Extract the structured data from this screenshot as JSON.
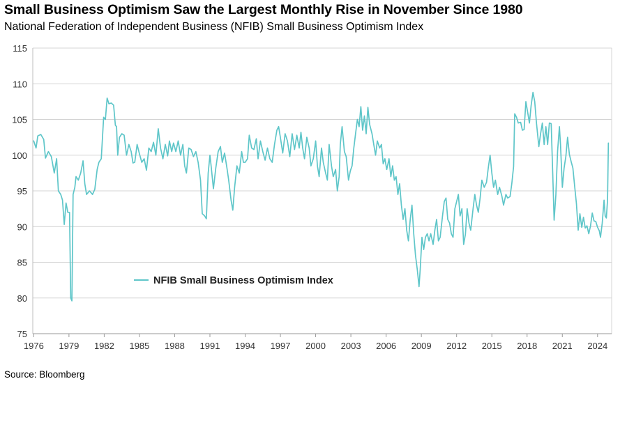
{
  "header": {
    "title": "Small Business Optimism Saw the Largest Monthly Rise in November Since 1980",
    "subtitle": "National Federation of Independent Business (NFIB) Small Business Optimism Index"
  },
  "footer": {
    "source": "Source: Bloomberg"
  },
  "chart_data": {
    "type": "line",
    "title": "Small Business Optimism Saw the Largest Monthly Rise in November Since 1980",
    "subtitle": "National Federation of Independent Business (NFIB) Small Business Optimism Index",
    "xlabel": "",
    "ylabel": "",
    "xlim": [
      1975.92,
      2025.2
    ],
    "ylim": [
      75,
      115
    ],
    "yticks": [
      75,
      80,
      85,
      90,
      95,
      100,
      105,
      110,
      115
    ],
    "xticks": [
      1976,
      1979,
      1982,
      1985,
      1988,
      1991,
      1994,
      1997,
      2000,
      2003,
      2006,
      2009,
      2012,
      2015,
      2018,
      2021,
      2024
    ],
    "grid": "horizontal",
    "legend_position": "lower-left",
    "color": "#5fc6c9",
    "series": [
      {
        "name": "NFIB Small Business Optimism Index",
        "points": [
          [
            1976.0,
            102.0
          ],
          [
            1976.2,
            101.0
          ],
          [
            1976.35,
            102.7
          ],
          [
            1976.6,
            102.9
          ],
          [
            1976.85,
            102.2
          ],
          [
            1977.0,
            99.6
          ],
          [
            1977.25,
            100.5
          ],
          [
            1977.5,
            99.8
          ],
          [
            1977.75,
            97.5
          ],
          [
            1977.95,
            99.5
          ],
          [
            1978.1,
            95.0
          ],
          [
            1978.3,
            94.5
          ],
          [
            1978.45,
            93.7
          ],
          [
            1978.6,
            90.3
          ],
          [
            1978.75,
            93.3
          ],
          [
            1978.9,
            92.0
          ],
          [
            1979.05,
            92.0
          ],
          [
            1979.15,
            80.0
          ],
          [
            1979.25,
            79.6
          ],
          [
            1979.35,
            94.5
          ],
          [
            1979.5,
            95.5
          ],
          [
            1979.6,
            97.0
          ],
          [
            1979.8,
            96.5
          ],
          [
            1980.0,
            97.5
          ],
          [
            1980.2,
            99.2
          ],
          [
            1980.35,
            96.0
          ],
          [
            1980.5,
            94.5
          ],
          [
            1980.75,
            95.0
          ],
          [
            1981.0,
            94.5
          ],
          [
            1981.2,
            95.2
          ],
          [
            1981.4,
            98.0
          ],
          [
            1981.55,
            99.0
          ],
          [
            1981.75,
            99.5
          ],
          [
            1981.95,
            105.3
          ],
          [
            1982.1,
            105.0
          ],
          [
            1982.25,
            108.0
          ],
          [
            1982.4,
            107.2
          ],
          [
            1982.6,
            107.3
          ],
          [
            1982.8,
            107.0
          ],
          [
            1982.95,
            104.2
          ],
          [
            1983.05,
            104.0
          ],
          [
            1983.15,
            100.0
          ],
          [
            1983.3,
            102.5
          ],
          [
            1983.5,
            103.0
          ],
          [
            1983.7,
            102.8
          ],
          [
            1983.9,
            100.0
          ],
          [
            1984.1,
            101.5
          ],
          [
            1984.3,
            100.5
          ],
          [
            1984.45,
            98.9
          ],
          [
            1984.6,
            99.0
          ],
          [
            1984.8,
            101.5
          ],
          [
            1985.0,
            100.2
          ],
          [
            1985.2,
            99.0
          ],
          [
            1985.4,
            99.5
          ],
          [
            1985.6,
            97.9
          ],
          [
            1985.8,
            101.0
          ],
          [
            1986.0,
            100.5
          ],
          [
            1986.2,
            101.8
          ],
          [
            1986.4,
            100.0
          ],
          [
            1986.6,
            103.7
          ],
          [
            1986.8,
            101.0
          ],
          [
            1987.0,
            99.5
          ],
          [
            1987.2,
            101.5
          ],
          [
            1987.4,
            99.9
          ],
          [
            1987.55,
            102.0
          ],
          [
            1987.75,
            100.5
          ],
          [
            1987.9,
            101.7
          ],
          [
            1988.1,
            100.5
          ],
          [
            1988.3,
            102.0
          ],
          [
            1988.5,
            100.0
          ],
          [
            1988.7,
            101.5
          ],
          [
            1988.85,
            98.5
          ],
          [
            1989.0,
            97.5
          ],
          [
            1989.2,
            101.0
          ],
          [
            1989.4,
            100.8
          ],
          [
            1989.6,
            99.8
          ],
          [
            1989.8,
            100.5
          ],
          [
            1990.0,
            99.0
          ],
          [
            1990.2,
            96.5
          ],
          [
            1990.35,
            91.8
          ],
          [
            1990.55,
            91.5
          ],
          [
            1990.7,
            91.1
          ],
          [
            1990.85,
            97.5
          ],
          [
            1991.0,
            100.0
          ],
          [
            1991.1,
            98.5
          ],
          [
            1991.3,
            95.3
          ],
          [
            1991.5,
            98.2
          ],
          [
            1991.7,
            100.5
          ],
          [
            1991.9,
            101.2
          ],
          [
            1992.05,
            99.0
          ],
          [
            1992.25,
            100.3
          ],
          [
            1992.45,
            98.2
          ],
          [
            1992.6,
            96.5
          ],
          [
            1992.8,
            93.7
          ],
          [
            1992.95,
            92.3
          ],
          [
            1993.1,
            95.5
          ],
          [
            1993.3,
            98.5
          ],
          [
            1993.5,
            97.5
          ],
          [
            1993.7,
            100.5
          ],
          [
            1993.85,
            99.0
          ],
          [
            1994.0,
            99.0
          ],
          [
            1994.2,
            99.5
          ],
          [
            1994.35,
            102.8
          ],
          [
            1994.55,
            101.0
          ],
          [
            1994.75,
            100.8
          ],
          [
            1994.95,
            102.3
          ],
          [
            1995.1,
            99.5
          ],
          [
            1995.3,
            102.0
          ],
          [
            1995.5,
            100.5
          ],
          [
            1995.7,
            99.3
          ],
          [
            1995.9,
            101.0
          ],
          [
            1996.1,
            99.5
          ],
          [
            1996.3,
            99.0
          ],
          [
            1996.5,
            101.5
          ],
          [
            1996.7,
            103.5
          ],
          [
            1996.85,
            104.0
          ],
          [
            1997.0,
            102.5
          ],
          [
            1997.2,
            100.3
          ],
          [
            1997.4,
            103.0
          ],
          [
            1997.6,
            102.0
          ],
          [
            1997.8,
            99.8
          ],
          [
            1998.0,
            103.0
          ],
          [
            1998.2,
            100.8
          ],
          [
            1998.4,
            102.8
          ],
          [
            1998.6,
            101.0
          ],
          [
            1998.75,
            103.2
          ],
          [
            1998.9,
            101.0
          ],
          [
            1999.05,
            99.5
          ],
          [
            1999.25,
            102.5
          ],
          [
            1999.45,
            101.0
          ],
          [
            1999.6,
            98.5
          ],
          [
            1999.8,
            99.5
          ],
          [
            2000.0,
            102.0
          ],
          [
            2000.15,
            98.5
          ],
          [
            2000.3,
            97.0
          ],
          [
            2000.5,
            101.0
          ],
          [
            2000.65,
            99.0
          ],
          [
            2000.85,
            97.5
          ],
          [
            2001.0,
            96.5
          ],
          [
            2001.15,
            101.5
          ],
          [
            2001.35,
            98.5
          ],
          [
            2001.5,
            97.0
          ],
          [
            2001.7,
            98.0
          ],
          [
            2001.85,
            95.0
          ],
          [
            2002.0,
            97.0
          ],
          [
            2002.1,
            101.5
          ],
          [
            2002.25,
            104.0
          ],
          [
            2002.45,
            100.5
          ],
          [
            2002.6,
            99.8
          ],
          [
            2002.8,
            96.5
          ],
          [
            2002.95,
            97.8
          ],
          [
            2003.1,
            98.5
          ],
          [
            2003.25,
            101.0
          ],
          [
            2003.4,
            103.0
          ],
          [
            2003.55,
            105.0
          ],
          [
            2003.7,
            104.0
          ],
          [
            2003.85,
            106.8
          ],
          [
            2004.0,
            103.5
          ],
          [
            2004.15,
            105.5
          ],
          [
            2004.3,
            103.0
          ],
          [
            2004.45,
            106.7
          ],
          [
            2004.6,
            104.3
          ],
          [
            2004.8,
            103.0
          ],
          [
            2004.95,
            101.5
          ],
          [
            2005.1,
            100.0
          ],
          [
            2005.25,
            102.0
          ],
          [
            2005.45,
            101.0
          ],
          [
            2005.6,
            101.5
          ],
          [
            2005.75,
            98.8
          ],
          [
            2005.9,
            99.5
          ],
          [
            2006.05,
            98.0
          ],
          [
            2006.25,
            99.5
          ],
          [
            2006.4,
            97.0
          ],
          [
            2006.55,
            98.5
          ],
          [
            2006.7,
            96.5
          ],
          [
            2006.85,
            97.0
          ],
          [
            2007.0,
            94.5
          ],
          [
            2007.15,
            96.0
          ],
          [
            2007.3,
            93.0
          ],
          [
            2007.45,
            91.0
          ],
          [
            2007.6,
            92.5
          ],
          [
            2007.75,
            89.5
          ],
          [
            2007.9,
            88.0
          ],
          [
            2008.05,
            91.0
          ],
          [
            2008.2,
            93.0
          ],
          [
            2008.35,
            89.0
          ],
          [
            2008.5,
            86.0
          ],
          [
            2008.65,
            84.0
          ],
          [
            2008.8,
            81.6
          ],
          [
            2008.9,
            84.0
          ],
          [
            2009.05,
            88.5
          ],
          [
            2009.2,
            86.8
          ],
          [
            2009.35,
            88.5
          ],
          [
            2009.5,
            89.0
          ],
          [
            2009.65,
            88.0
          ],
          [
            2009.8,
            89.0
          ],
          [
            2010.0,
            87.5
          ],
          [
            2010.15,
            89.5
          ],
          [
            2010.3,
            91.0
          ],
          [
            2010.45,
            88.0
          ],
          [
            2010.6,
            88.5
          ],
          [
            2010.8,
            91.5
          ],
          [
            2010.95,
            93.5
          ],
          [
            2011.1,
            94.0
          ],
          [
            2011.25,
            91.0
          ],
          [
            2011.4,
            90.5
          ],
          [
            2011.55,
            89.0
          ],
          [
            2011.7,
            88.5
          ],
          [
            2011.85,
            92.5
          ],
          [
            2012.0,
            93.5
          ],
          [
            2012.15,
            94.5
          ],
          [
            2012.3,
            91.5
          ],
          [
            2012.45,
            92.5
          ],
          [
            2012.6,
            87.5
          ],
          [
            2012.75,
            88.9
          ],
          [
            2012.9,
            92.5
          ],
          [
            2013.05,
            90.5
          ],
          [
            2013.2,
            89.5
          ],
          [
            2013.4,
            92.5
          ],
          [
            2013.55,
            94.5
          ],
          [
            2013.7,
            93.0
          ],
          [
            2013.85,
            92.0
          ],
          [
            2014.0,
            94.0
          ],
          [
            2014.15,
            96.5
          ],
          [
            2014.35,
            95.5
          ],
          [
            2014.55,
            96.2
          ],
          [
            2014.7,
            98.3
          ],
          [
            2014.85,
            100.0
          ],
          [
            2015.0,
            97.5
          ],
          [
            2015.15,
            95.5
          ],
          [
            2015.3,
            96.5
          ],
          [
            2015.5,
            94.5
          ],
          [
            2015.65,
            95.5
          ],
          [
            2015.85,
            94.3
          ],
          [
            2016.0,
            93.0
          ],
          [
            2016.2,
            94.5
          ],
          [
            2016.35,
            94.0
          ],
          [
            2016.55,
            94.2
          ],
          [
            2016.7,
            96.0
          ],
          [
            2016.85,
            98.4
          ],
          [
            2016.95,
            105.8
          ],
          [
            2017.1,
            105.3
          ],
          [
            2017.25,
            104.5
          ],
          [
            2017.45,
            104.6
          ],
          [
            2017.6,
            103.5
          ],
          [
            2017.75,
            103.6
          ],
          [
            2017.9,
            107.5
          ],
          [
            2018.05,
            106.0
          ],
          [
            2018.2,
            104.5
          ],
          [
            2018.35,
            107.0
          ],
          [
            2018.5,
            108.8
          ],
          [
            2018.65,
            107.5
          ],
          [
            2018.8,
            104.5
          ],
          [
            2019.0,
            101.2
          ],
          [
            2019.15,
            103.0
          ],
          [
            2019.3,
            104.5
          ],
          [
            2019.45,
            101.5
          ],
          [
            2019.6,
            104.0
          ],
          [
            2019.75,
            101.5
          ],
          [
            2019.9,
            104.5
          ],
          [
            2020.05,
            104.4
          ],
          [
            2020.2,
            96.5
          ],
          [
            2020.3,
            90.9
          ],
          [
            2020.45,
            94.4
          ],
          [
            2020.6,
            100.6
          ],
          [
            2020.75,
            104.0
          ],
          [
            2020.85,
            101.4
          ],
          [
            2021.0,
            95.5
          ],
          [
            2021.15,
            98.2
          ],
          [
            2021.3,
            99.8
          ],
          [
            2021.45,
            102.5
          ],
          [
            2021.6,
            100.1
          ],
          [
            2021.75,
            99.1
          ],
          [
            2021.9,
            98.2
          ],
          [
            2022.05,
            95.7
          ],
          [
            2022.2,
            93.2
          ],
          [
            2022.35,
            89.5
          ],
          [
            2022.5,
            91.8
          ],
          [
            2022.65,
            89.9
          ],
          [
            2022.8,
            91.3
          ],
          [
            2022.95,
            89.8
          ],
          [
            2023.1,
            90.1
          ],
          [
            2023.25,
            89.0
          ],
          [
            2023.4,
            90.1
          ],
          [
            2023.55,
            91.9
          ],
          [
            2023.7,
            90.8
          ],
          [
            2023.85,
            90.7
          ],
          [
            2024.0,
            89.9
          ],
          [
            2024.15,
            89.4
          ],
          [
            2024.25,
            88.5
          ],
          [
            2024.4,
            90.5
          ],
          [
            2024.55,
            93.7
          ],
          [
            2024.65,
            91.5
          ],
          [
            2024.75,
            91.2
          ],
          [
            2024.85,
            93.7
          ],
          [
            2024.92,
            101.7
          ]
        ]
      }
    ]
  }
}
